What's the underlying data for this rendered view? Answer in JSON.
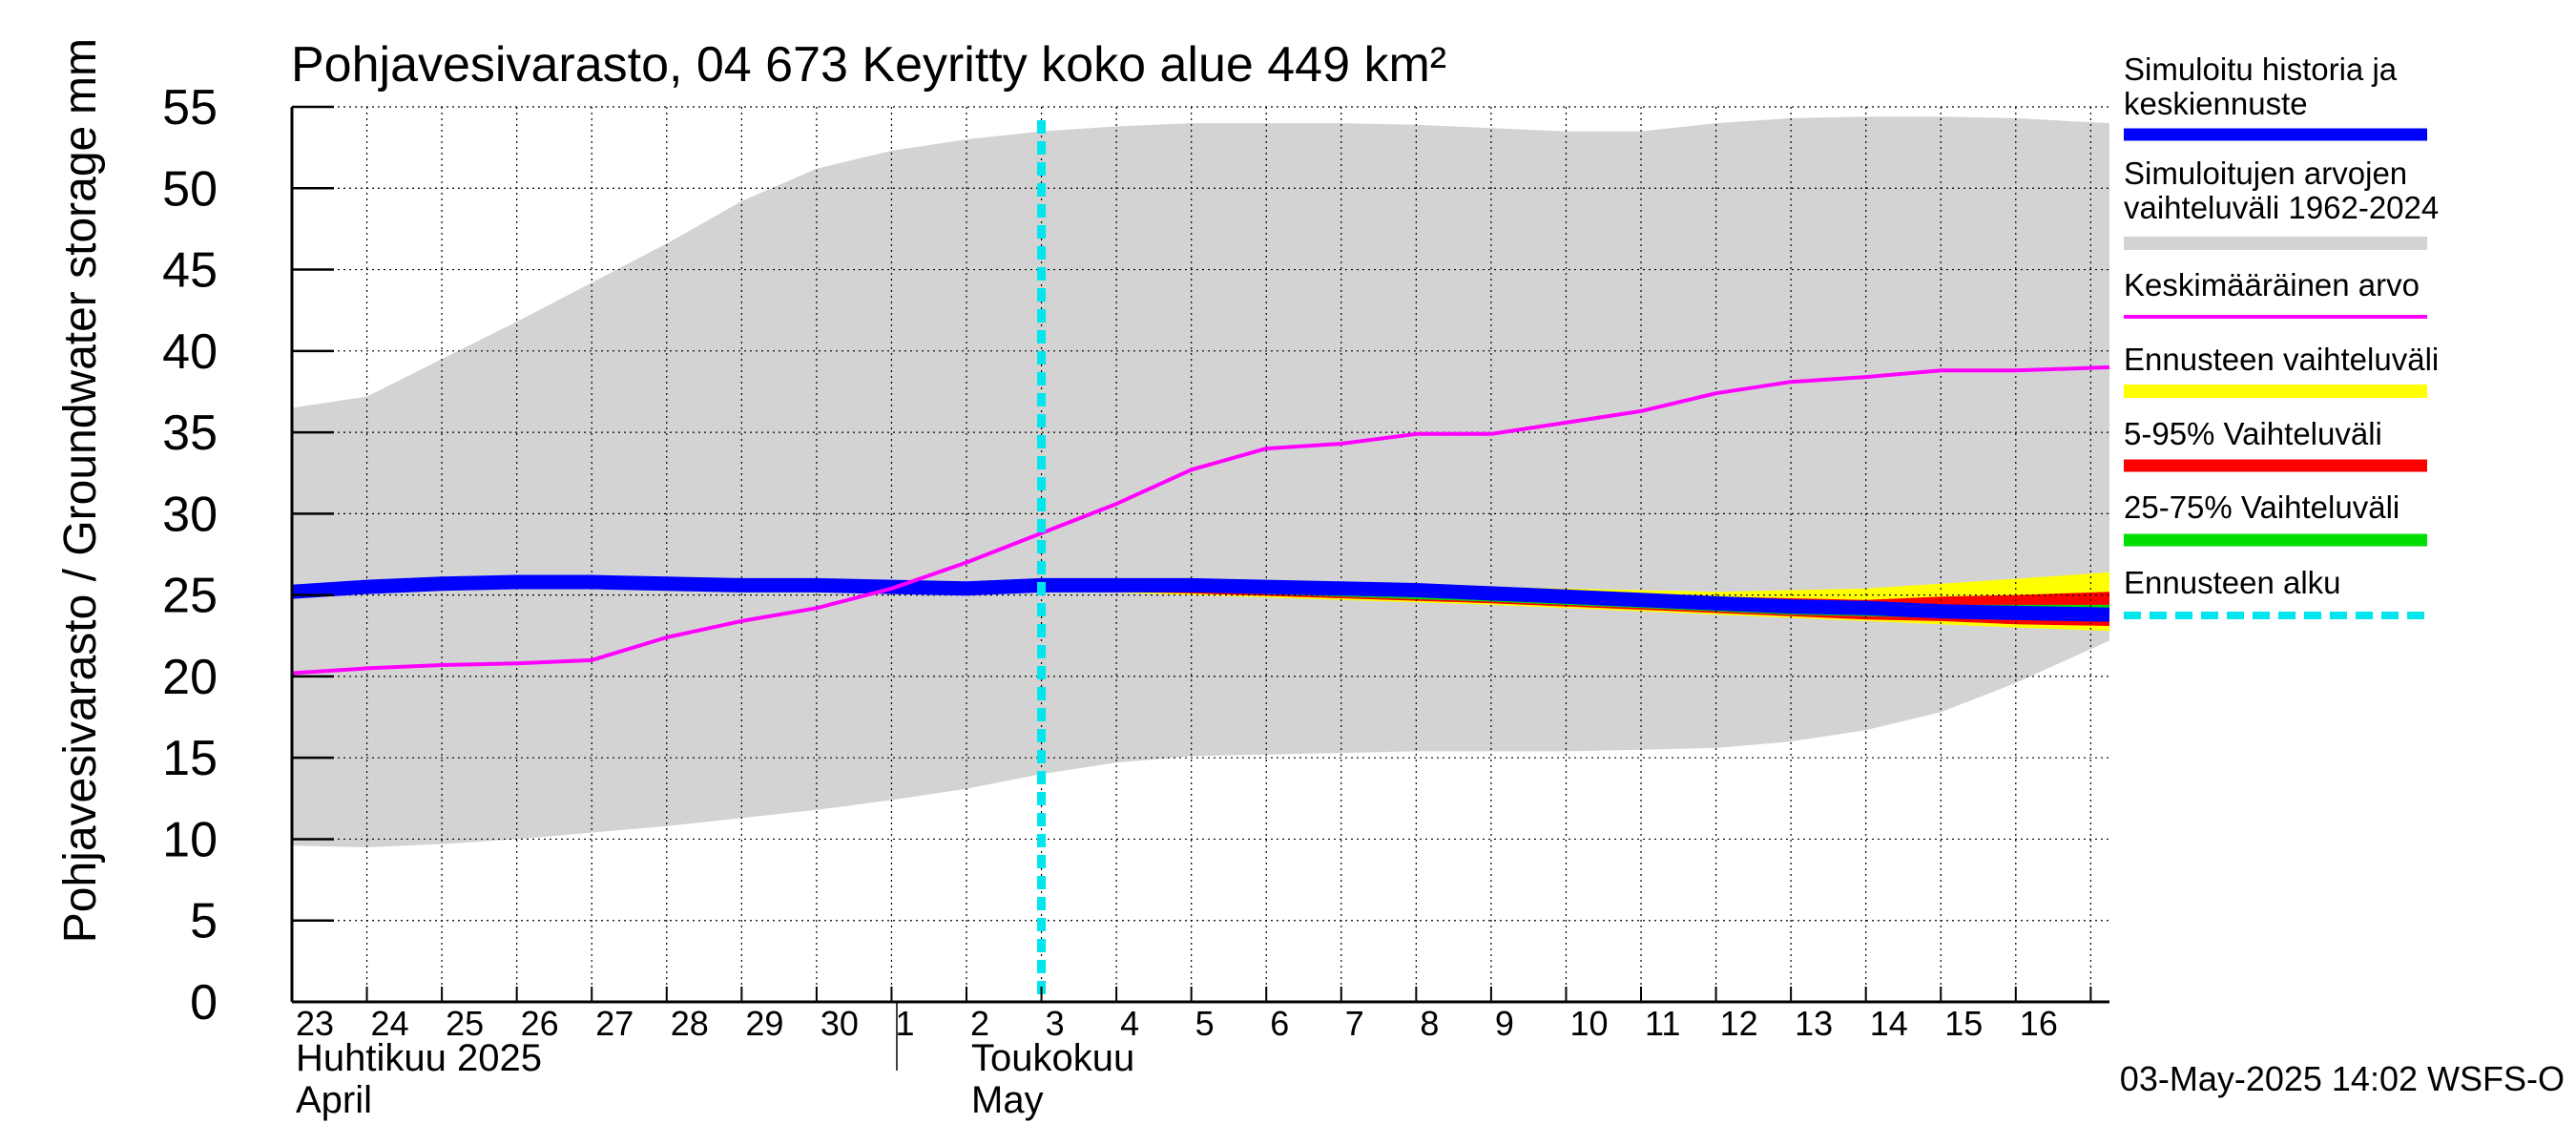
{
  "chart_data": {
    "type": "area",
    "title": "Pohjavesivarasto, 04 673 Keyritty koko alue 449 km²",
    "ylabel": "Pohjavesivarasto / Groundwater storage",
    "yunit": "mm",
    "ylim": [
      0,
      55
    ],
    "yticks": [
      0,
      5,
      10,
      15,
      20,
      25,
      30,
      35,
      40,
      45,
      50,
      55
    ],
    "x_range_days": [
      0,
      24.25
    ],
    "x_tick_labels": [
      "23",
      "24",
      "25",
      "26",
      "27",
      "28",
      "29",
      "30",
      "1",
      "2",
      "3",
      "4",
      "5",
      "6",
      "7",
      "8",
      "9",
      "10",
      "11",
      "12",
      "13",
      "14",
      "15",
      "16"
    ],
    "month_labels": [
      {
        "fi": "Huhtikuu  2025",
        "en": "April"
      },
      {
        "fi": "Toukokuu",
        "en": "May"
      }
    ],
    "grid": true,
    "forecast_start_day": 10,
    "timestamp": "03-May-2025 14:02 WSFS-O",
    "series": [
      {
        "name": "Simuloitujen arvojen vaihteluväli 1962-2024",
        "color": "#d3d3d3",
        "x": [
          0,
          1,
          2,
          3,
          4,
          5,
          6,
          7,
          8,
          9,
          10,
          11,
          12,
          13,
          14,
          15,
          16,
          17,
          18,
          19,
          20,
          21,
          22,
          23,
          24.25
        ],
        "upper": [
          36.5,
          37.2,
          39.5,
          41.8,
          44.2,
          46.6,
          49.2,
          51.2,
          52.3,
          53.0,
          53.5,
          53.8,
          54.0,
          54.0,
          54.0,
          53.9,
          53.7,
          53.5,
          53.5,
          54.0,
          54.3,
          54.4,
          54.4,
          54.3,
          54.0
        ],
        "lower": [
          9.6,
          9.5,
          9.7,
          10.0,
          10.4,
          10.8,
          11.3,
          11.8,
          12.4,
          13.1,
          14.0,
          14.7,
          15.1,
          15.2,
          15.3,
          15.4,
          15.4,
          15.4,
          15.5,
          15.6,
          16.0,
          16.7,
          17.8,
          19.6,
          22.2
        ]
      },
      {
        "name": "Ennusteen vaihteluväli",
        "color": "#ffff00",
        "x": [
          10,
          12,
          14,
          16,
          18,
          19,
          20,
          21,
          22,
          23,
          24.25
        ],
        "upper": [
          25.6,
          25.7,
          25.7,
          25.5,
          25.3,
          25.2,
          25.3,
          25.4,
          25.7,
          26.0,
          26.4
        ],
        "lower": [
          25.3,
          25.0,
          24.7,
          24.4,
          24.0,
          23.8,
          23.6,
          23.4,
          23.2,
          23.0,
          22.8
        ]
      },
      {
        "name": "5-95% Vaihteluväli",
        "color": "#ff0000",
        "x": [
          10,
          12,
          14,
          16,
          18,
          19,
          20,
          21,
          22,
          23,
          24.25
        ],
        "upper": [
          25.5,
          25.6,
          25.5,
          25.3,
          25.0,
          24.9,
          24.8,
          24.7,
          24.9,
          25.0,
          25.2
        ],
        "lower": [
          25.3,
          25.1,
          24.8,
          24.5,
          24.1,
          23.9,
          23.7,
          23.5,
          23.4,
          23.2,
          23.1
        ]
      },
      {
        "name": "25-75% Vaihteluväli",
        "color": "#00dd00",
        "x": [
          10,
          12,
          14,
          16,
          18,
          19,
          20,
          21,
          22,
          23,
          24.25
        ],
        "upper": [
          25.4,
          25.4,
          25.3,
          25.1,
          24.8,
          24.6,
          24.5,
          24.4,
          24.4,
          24.4,
          24.4
        ],
        "lower": [
          25.3,
          25.2,
          24.9,
          24.6,
          24.2,
          24.0,
          23.8,
          23.7,
          23.6,
          23.5,
          23.4
        ]
      },
      {
        "name": "Simuloitu historia ja keskiennuste",
        "color": "#0000ff",
        "x": [
          0,
          1,
          2,
          3,
          4,
          5,
          6,
          7,
          8,
          9,
          10,
          11,
          12,
          13,
          14,
          15,
          16,
          17,
          18,
          19,
          20,
          21,
          22,
          23,
          24.25
        ],
        "values": [
          25.2,
          25.5,
          25.7,
          25.8,
          25.8,
          25.7,
          25.6,
          25.6,
          25.5,
          25.4,
          25.6,
          25.6,
          25.6,
          25.5,
          25.4,
          25.3,
          25.1,
          24.9,
          24.7,
          24.5,
          24.3,
          24.2,
          24.0,
          23.9,
          23.8
        ]
      },
      {
        "name": "Keskimääräinen arvo",
        "color": "#ff00ff",
        "x": [
          0,
          1,
          2,
          3,
          4,
          5,
          6,
          7,
          8,
          9,
          10,
          11,
          12,
          13,
          14,
          15,
          16,
          17,
          18,
          19,
          20,
          21,
          22,
          23,
          24.25
        ],
        "values": [
          20.2,
          20.5,
          20.7,
          20.8,
          21.0,
          22.4,
          23.4,
          24.2,
          25.4,
          27.0,
          28.8,
          30.6,
          32.7,
          34.0,
          34.3,
          34.9,
          34.9,
          35.6,
          36.3,
          37.4,
          38.1,
          38.4,
          38.8,
          38.8,
          39.0
        ]
      }
    ]
  },
  "legend": {
    "items": [
      {
        "label": "Simuloitu historia ja keskiennuste",
        "color": "#0000ff",
        "style": "solid"
      },
      {
        "label": "Simuloitujen arvojen vaihteluväli 1962-2024",
        "color": "#d3d3d3",
        "style": "solid"
      },
      {
        "label": "Keskimääräinen arvo",
        "color": "#ff00ff",
        "style": "thin"
      },
      {
        "label": "Ennusteen vaihteluväli",
        "color": "#ffff00",
        "style": "solid"
      },
      {
        "label": "5-95% Vaihteluväli",
        "color": "#ff0000",
        "style": "solid"
      },
      {
        "label": "25-75% Vaihteluväli",
        "color": "#00dd00",
        "style": "solid"
      },
      {
        "label": "Ennusteen alku",
        "color": "#00e5ee",
        "style": "dashed"
      }
    ]
  }
}
